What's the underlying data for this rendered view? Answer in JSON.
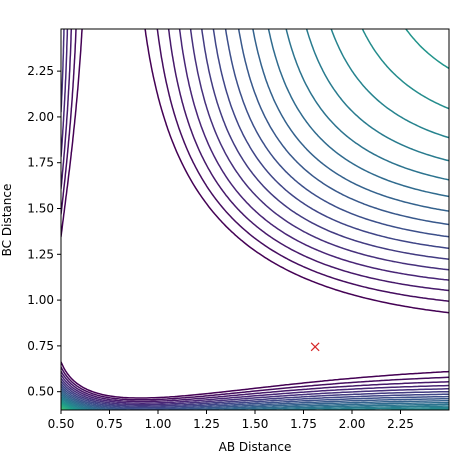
{
  "chart_data": {
    "type": "contour",
    "title": "",
    "xlabel": "AB Distance",
    "ylabel": "BC Distance",
    "xlim": [
      0.5,
      2.5
    ],
    "ylim": [
      0.4,
      2.48
    ],
    "xticks": [
      "0.50",
      "0.75",
      "1.00",
      "1.25",
      "1.50",
      "1.75",
      "2.00",
      "2.25"
    ],
    "xtick_values": [
      0.5,
      0.75,
      1.0,
      1.25,
      1.5,
      1.75,
      2.0,
      2.25
    ],
    "yticks": [
      "0.50",
      "0.75",
      "1.00",
      "1.25",
      "1.50",
      "1.75",
      "2.00",
      "2.25"
    ],
    "ytick_values": [
      0.5,
      0.75,
      1.0,
      1.25,
      1.5,
      1.75,
      2.0,
      2.25
    ],
    "grid": false,
    "colormap": "viridis",
    "surface": {
      "form": "LEPS-like",
      "D": 4.5,
      "a": 1.9,
      "r0": 0.74,
      "coupling": 1.5,
      "levels": 30,
      "level_min": -4.3,
      "level_max": 2.5
    },
    "marker": {
      "x": 1.81,
      "y": 0.745,
      "symbol": "x",
      "color": "#d62728"
    }
  }
}
